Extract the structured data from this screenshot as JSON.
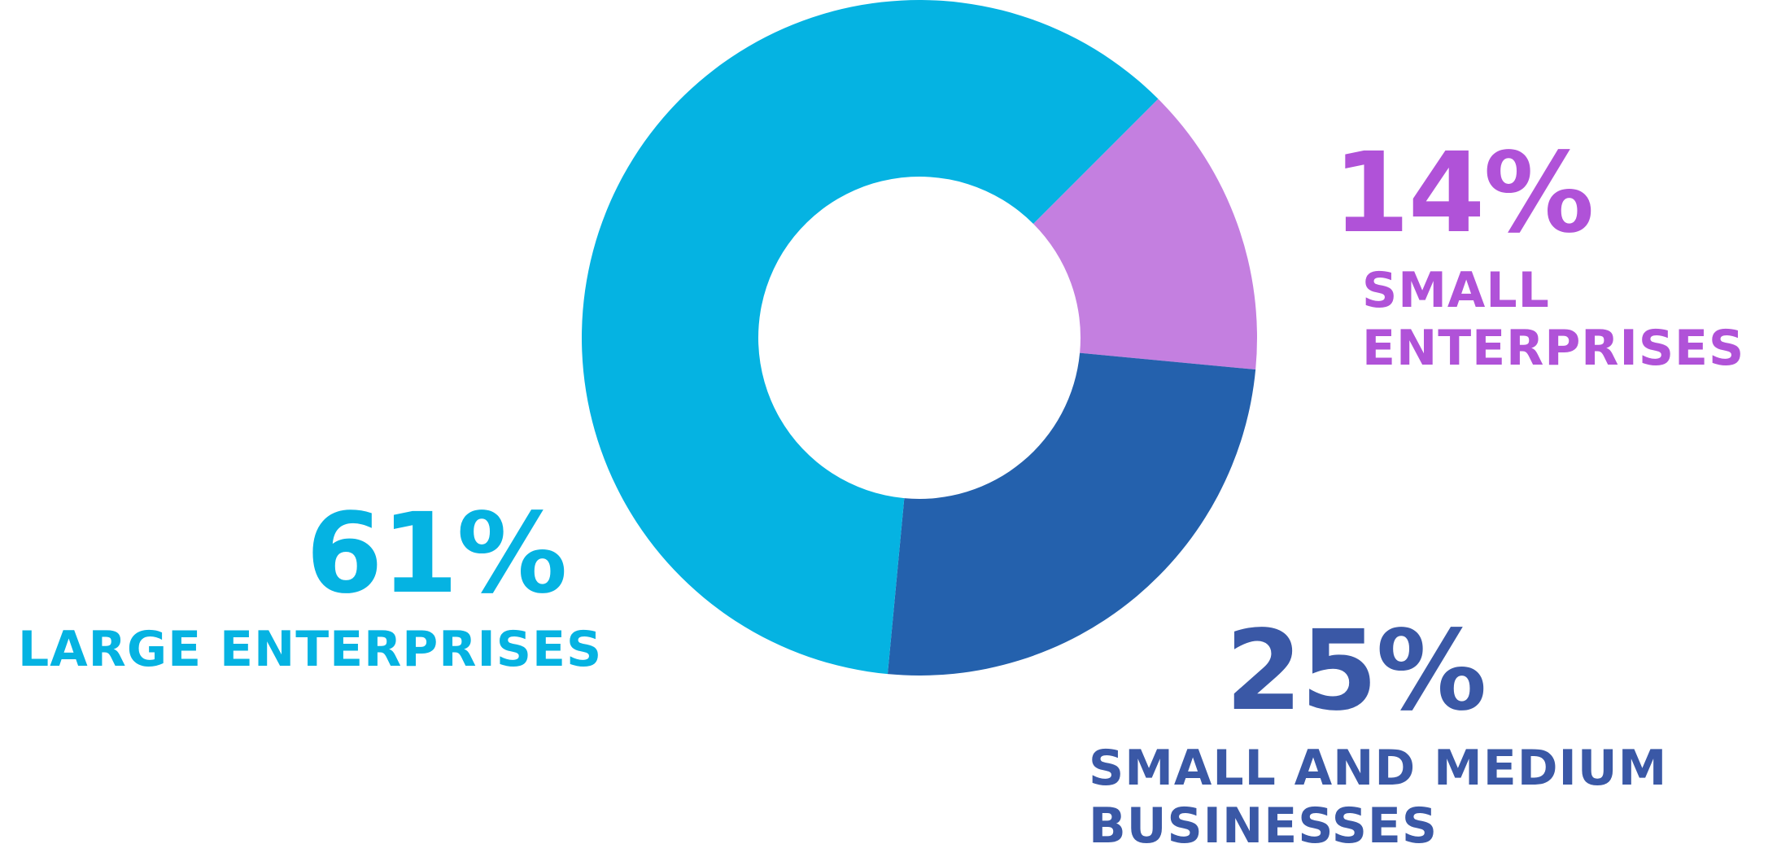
{
  "chart_data": {
    "type": "pie",
    "variant": "donut",
    "start_angle_deg": 0,
    "direction": "clockwise",
    "slices": [
      {
        "label": "SMALL ENTERPRISES",
        "value": 14,
        "value_label": "14%",
        "color": "#c47fe0",
        "text_color": "#b052d8"
      },
      {
        "label": "SMALL AND MEDIUM BUSINESSES",
        "value": 25,
        "value_label": "25%",
        "color": "#2461ad",
        "text_color": "#3a58a6"
      },
      {
        "label": "LARGE ENTERPRISES",
        "value": 61,
        "value_label": "61%",
        "color": "#05b3e2",
        "text_color": "#05b3e2"
      }
    ]
  },
  "labels": {
    "small_enterprises": {
      "percent": "14%",
      "line1": "SMALL",
      "line2": "ENTERPRISES"
    },
    "smb": {
      "percent": "25%",
      "line1": "SMALL AND MEDIUM",
      "line2": "BUSINESSES"
    },
    "large_enterprises": {
      "percent": "61%",
      "line1": "LARGE ENTERPRISES"
    }
  }
}
